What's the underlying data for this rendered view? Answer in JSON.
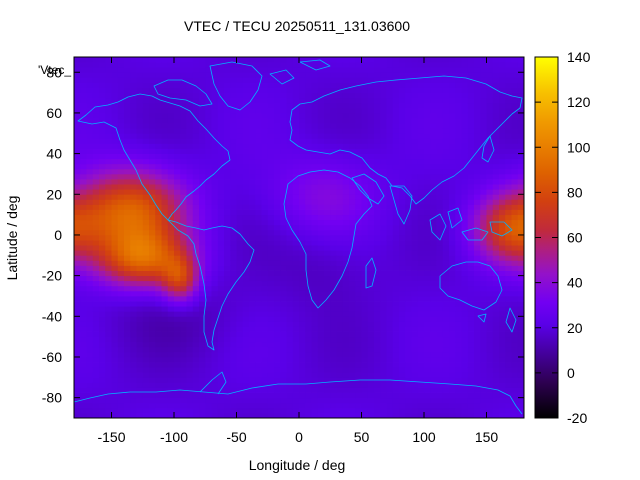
{
  "chart_data": {
    "type": "heatmap",
    "title": "VTEC / TECU 20250511_131.03600",
    "xlabel": "Longitude / deg",
    "ylabel": "Latitude / deg",
    "xlim": [
      -180,
      180
    ],
    "ylim": [
      -90,
      87.5
    ],
    "zlim": [
      -20,
      140
    ],
    "x_ticks": [
      -150,
      -100,
      -50,
      0,
      50,
      100,
      150
    ],
    "y_ticks": [
      -80,
      -60,
      -40,
      -20,
      0,
      20,
      40,
      60,
      80
    ],
    "colorbar_ticks": [
      -20,
      0,
      20,
      40,
      60,
      80,
      100,
      120,
      140
    ],
    "legend_label": "'Vtec_",
    "colormap": "gnuplot pm3d (black-purple-red-orange-yellow)",
    "coastline_color": "#00b4ff",
    "grid_step_deg": [
      5,
      2.5
    ],
    "background_level": 20,
    "features": [
      {
        "region": "eastern Pacific equatorial anomaly",
        "lon": -135,
        "lat": 12,
        "peak": 86
      },
      {
        "region": "eastern Pacific southern crest",
        "lon": -125,
        "lat": -12,
        "peak": 80
      },
      {
        "region": "western Pacific / Indonesia",
        "lon": 170,
        "lat": 3,
        "peak": 72
      },
      {
        "region": "South America west coast",
        "lon": -95,
        "lat": -22,
        "peak": 62
      },
      {
        "region": "northern Africa",
        "lon": 20,
        "lat": 20,
        "peak": 36
      },
      {
        "region": "South Atlantic low",
        "lon": 20,
        "lat": -15,
        "peak": 14
      },
      {
        "region": "southern ocean low",
        "lon": -100,
        "lat": -40,
        "peak": 14
      }
    ]
  }
}
